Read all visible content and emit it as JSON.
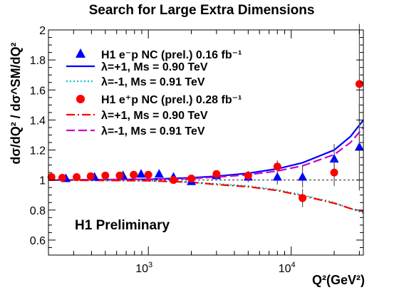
{
  "chart_data": {
    "type": "scatter",
    "title": "Search for Large Extra Dimensions",
    "ylabel": "dσ/dQ² / dσ^SM/dQ²",
    "xlabel": "Q²(GeV²)",
    "xscale": "log",
    "xlim": [
      200,
      32000
    ],
    "ylim": [
      0.5,
      2.0
    ],
    "yticks": [
      0.6,
      0.8,
      1.0,
      1.2,
      1.4,
      1.6,
      1.8,
      2.0
    ],
    "ytick_labels": [
      "0.6",
      "0.8",
      "1",
      "1.2",
      "1.4",
      "1.6",
      "1.8",
      "2"
    ],
    "xticks": [
      1000,
      10000
    ],
    "xtick_labels": [
      "10^3",
      "10^4"
    ],
    "reference_line_y": 1.0,
    "annotation": "H1 Preliminary",
    "legend_placement": "top-left",
    "legend": [
      {
        "key": "em_data",
        "label": "H1 e⁻p NC (prel.) 0.16 fb⁻¹",
        "marker": "triangle",
        "color": "#0000ff"
      },
      {
        "key": "em_plus",
        "label": "λ=+1,   Ms = 0.90 TeV",
        "line": "solid",
        "color": "#0000ff"
      },
      {
        "key": "em_minus",
        "label": "λ=-1,   Ms = 0.91 TeV",
        "line": "dotted",
        "color": "#00c8c8"
      },
      {
        "key": "ep_data",
        "label": "H1 e⁺p NC (prel.) 0.28 fb⁻¹",
        "marker": "circle",
        "color": "#ff0000"
      },
      {
        "key": "ep_plus",
        "label": "λ=+1,   Ms = 0.90 TeV",
        "line": "dashdot",
        "color": "#ff0000"
      },
      {
        "key": "ep_minus",
        "label": "λ=-1,   Ms = 0.91 TeV",
        "line": "dashed",
        "color": "#c800c8"
      }
    ],
    "series": [
      {
        "key": "em_data",
        "kind": "points",
        "marker": "triangle",
        "color": "#0000ff",
        "points": [
          {
            "x": 265,
            "y": 1.01,
            "err": 0.01
          },
          {
            "x": 420,
            "y": 1.02,
            "err": 0.01
          },
          {
            "x": 665,
            "y": 1.03,
            "err": 0.015
          },
          {
            "x": 890,
            "y": 1.04,
            "err": 0.015
          },
          {
            "x": 1190,
            "y": 1.04,
            "err": 0.02
          },
          {
            "x": 1500,
            "y": 1.02,
            "err": 0.02
          },
          {
            "x": 2000,
            "y": 0.99,
            "err": 0.02
          },
          {
            "x": 3000,
            "y": 1.03,
            "err": 0.025
          },
          {
            "x": 5000,
            "y": 1.02,
            "err": 0.035
          },
          {
            "x": 8000,
            "y": 1.02,
            "err": 0.05
          },
          {
            "x": 12000,
            "y": 1.02,
            "err": 0.07
          },
          {
            "x": 20000,
            "y": 1.14,
            "err": 0.1
          },
          {
            "x": 30000,
            "y": 1.22,
            "err": 0.29
          }
        ]
      },
      {
        "key": "ep_data",
        "kind": "points",
        "marker": "circle",
        "color": "#ff0000",
        "points": [
          {
            "x": 210,
            "y": 1.02,
            "err": 0.01
          },
          {
            "x": 250,
            "y": 1.015,
            "err": 0.01
          },
          {
            "x": 315,
            "y": 1.02,
            "err": 0.01
          },
          {
            "x": 395,
            "y": 1.025,
            "err": 0.01
          },
          {
            "x": 500,
            "y": 1.03,
            "err": 0.01
          },
          {
            "x": 630,
            "y": 1.03,
            "err": 0.015
          },
          {
            "x": 790,
            "y": 1.035,
            "err": 0.015
          },
          {
            "x": 1000,
            "y": 1.035,
            "err": 0.015
          },
          {
            "x": 1500,
            "y": 1.0,
            "err": 0.02
          },
          {
            "x": 2000,
            "y": 1.01,
            "err": 0.02
          },
          {
            "x": 3000,
            "y": 1.04,
            "err": 0.025
          },
          {
            "x": 5000,
            "y": 1.03,
            "err": 0.03
          },
          {
            "x": 8000,
            "y": 1.09,
            "err": 0.04
          },
          {
            "x": 12000,
            "y": 0.88,
            "err": 0.06
          },
          {
            "x": 20000,
            "y": 1.05,
            "err": 0.09
          },
          {
            "x": 30000,
            "y": 1.64,
            "err": 0.4
          }
        ]
      },
      {
        "key": "em_plus",
        "kind": "line",
        "line": "solid",
        "color": "#0000ff",
        "points": [
          [
            200,
            1.0
          ],
          [
            1000,
            1.005
          ],
          [
            2000,
            1.015
          ],
          [
            3000,
            1.025
          ],
          [
            5000,
            1.045
          ],
          [
            8000,
            1.075
          ],
          [
            12000,
            1.115
          ],
          [
            20000,
            1.2
          ],
          [
            26000,
            1.29
          ],
          [
            32000,
            1.4
          ]
        ]
      },
      {
        "key": "ep_minus",
        "kind": "line",
        "line": "dashed",
        "color": "#c800c8",
        "points": [
          [
            200,
            1.0
          ],
          [
            1000,
            1.005
          ],
          [
            2000,
            1.01
          ],
          [
            3000,
            1.02
          ],
          [
            5000,
            1.035
          ],
          [
            8000,
            1.06
          ],
          [
            12000,
            1.095
          ],
          [
            20000,
            1.17
          ],
          [
            26000,
            1.25
          ],
          [
            32000,
            1.35
          ]
        ]
      },
      {
        "key": "em_minus",
        "kind": "line",
        "line": "dotted",
        "color": "#00c8c8",
        "points": [
          [
            200,
            1.0
          ],
          [
            1000,
            0.995
          ],
          [
            2000,
            0.985
          ],
          [
            3000,
            0.975
          ],
          [
            5000,
            0.96
          ],
          [
            8000,
            0.935
          ],
          [
            12000,
            0.9
          ],
          [
            20000,
            0.85
          ],
          [
            26000,
            0.81
          ],
          [
            32000,
            0.78
          ]
        ]
      },
      {
        "key": "ep_plus",
        "kind": "line",
        "line": "dashdot",
        "color": "#ff0000",
        "points": [
          [
            200,
            1.0
          ],
          [
            1000,
            0.995
          ],
          [
            2000,
            0.985
          ],
          [
            3000,
            0.97
          ],
          [
            5000,
            0.955
          ],
          [
            8000,
            0.93
          ],
          [
            12000,
            0.895
          ],
          [
            20000,
            0.845
          ],
          [
            26000,
            0.81
          ],
          [
            32000,
            0.79
          ]
        ]
      }
    ]
  }
}
